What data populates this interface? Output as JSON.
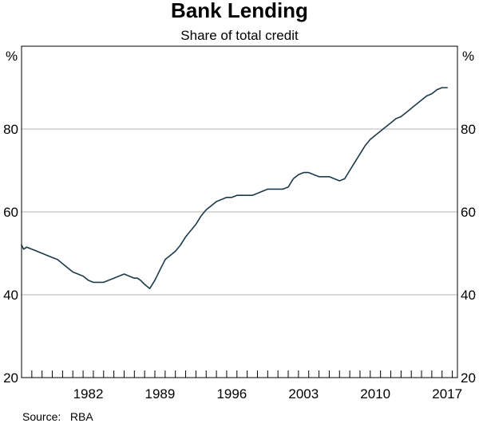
{
  "chart_data": {
    "type": "line",
    "title": "Bank Lending",
    "subtitle": "Share of total credit",
    "y_unit_left": "%",
    "y_unit_right": "%",
    "ylim": [
      20,
      100
    ],
    "y_ticks": [
      20,
      40,
      60,
      80
    ],
    "y_tick_labels": [
      "20",
      "40",
      "60",
      "80"
    ],
    "xlim": [
      1976.0,
      2018.5
    ],
    "x_ticks": [
      1982,
      1989,
      1996,
      2003,
      2010,
      2017
    ],
    "x_tick_labels": [
      "1982",
      "1989",
      "1996",
      "2003",
      "2010",
      "2017"
    ],
    "grid": "horizontal",
    "source": "Source:   RBA",
    "line_color": "#1c3a4a",
    "series": [
      {
        "x": [
          1976.0,
          1976.2,
          1976.5,
          1977.0,
          1977.5,
          1978.0,
          1978.5,
          1979.0,
          1979.5,
          1980.0,
          1980.5,
          1981.0,
          1981.5,
          1982.0,
          1982.5,
          1983.0,
          1983.5,
          1984.0,
          1984.5,
          1985.0,
          1985.5,
          1986.0,
          1986.5,
          1987.0,
          1987.3,
          1987.6,
          1988.0,
          1988.5,
          1989.0,
          1989.5,
          1990.0,
          1990.5,
          1991.0,
          1991.5,
          1992.0,
          1992.5,
          1993.0,
          1993.5,
          1994.0,
          1994.5,
          1995.0,
          1995.5,
          1996.0,
          1996.5,
          1997.0,
          1997.5,
          1998.0,
          1998.5,
          1999.0,
          1999.5,
          2000.0,
          2000.5,
          2001.0,
          2001.5,
          2002.0,
          2002.5,
          2003.0,
          2003.5,
          2004.0,
          2004.5,
          2005.0,
          2005.5,
          2006.0,
          2006.5,
          2007.0,
          2007.5,
          2008.0,
          2008.5,
          2009.0,
          2009.5,
          2010.0,
          2010.5,
          2011.0,
          2011.5,
          2012.0,
          2012.5,
          2013.0,
          2013.5,
          2014.0,
          2014.5,
          2015.0,
          2015.5,
          2016.0,
          2016.5,
          2017.0,
          2017.5
        ],
        "y": [
          52.0,
          51.0,
          51.5,
          51.0,
          50.5,
          50.0,
          49.5,
          49.0,
          48.5,
          47.5,
          46.5,
          45.5,
          45.0,
          44.5,
          43.5,
          43.0,
          43.0,
          43.0,
          43.5,
          44.0,
          44.5,
          45.0,
          44.5,
          44.0,
          44.0,
          43.5,
          42.5,
          41.5,
          43.5,
          46.0,
          48.5,
          49.5,
          50.5,
          52.0,
          54.0,
          55.5,
          57.0,
          59.0,
          60.5,
          61.5,
          62.5,
          63.0,
          63.5,
          63.5,
          64.0,
          64.0,
          64.0,
          64.0,
          64.5,
          65.0,
          65.5,
          65.5,
          65.5,
          65.5,
          66.0,
          68.0,
          69.0,
          69.5,
          69.5,
          69.0,
          68.5,
          68.5,
          68.5,
          68.0,
          67.5,
          68.0,
          70.0,
          72.0,
          74.0,
          76.0,
          77.5,
          78.5,
          79.5,
          80.5,
          81.5,
          82.5,
          83.0,
          84.0,
          85.0,
          86.0,
          87.0,
          88.0,
          88.5,
          89.5,
          90.0,
          90.0
        ]
      }
    ]
  }
}
